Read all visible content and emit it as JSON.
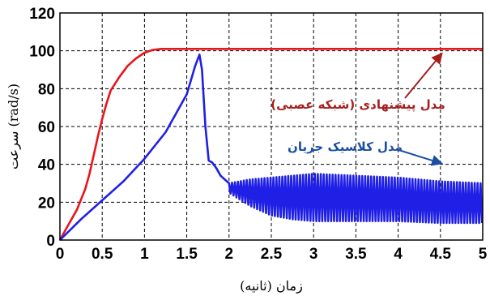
{
  "chart_data": {
    "type": "line",
    "title": "",
    "xlabel": "زمان (ثانیه)",
    "ylabel": "سرعت (rad/s)",
    "xlim": [
      0,
      5
    ],
    "ylim": [
      0,
      120
    ],
    "xticks": [
      "0",
      "0.5",
      "1",
      "1.5",
      "2",
      "2.5",
      "3",
      "3.5",
      "4",
      "4.5",
      "5"
    ],
    "yticks": [
      "0",
      "20",
      "40",
      "60",
      "80",
      "100",
      "120"
    ],
    "grid": true,
    "colors": {
      "proposed": "#e8151b",
      "classic": "#1f1fe6",
      "annotation_red": "#a61e1e",
      "annotation_blue": "#1a4fa0"
    },
    "series": [
      {
        "name": "مدل پیشنهادی (شبکه عصبی)",
        "points": [
          [
            0,
            0
          ],
          [
            0.1,
            8
          ],
          [
            0.2,
            16
          ],
          [
            0.3,
            27
          ],
          [
            0.35,
            35
          ],
          [
            0.4,
            45
          ],
          [
            0.45,
            55
          ],
          [
            0.5,
            64
          ],
          [
            0.55,
            72
          ],
          [
            0.6,
            79
          ],
          [
            0.7,
            86
          ],
          [
            0.8,
            92
          ],
          [
            0.9,
            96
          ],
          [
            1.0,
            99
          ],
          [
            1.1,
            100.5
          ],
          [
            1.2,
            101
          ],
          [
            5,
            101
          ]
        ]
      },
      {
        "name": "مدل کلاسیک جریان",
        "points": [
          [
            0,
            0
          ],
          [
            0.25,
            11
          ],
          [
            0.5,
            21
          ],
          [
            0.75,
            31
          ],
          [
            1.0,
            43
          ],
          [
            1.25,
            57
          ],
          [
            1.5,
            77
          ],
          [
            1.6,
            92
          ],
          [
            1.65,
            98
          ],
          [
            1.68,
            90
          ],
          [
            1.72,
            60
          ],
          [
            1.76,
            42
          ],
          [
            1.8,
            41
          ],
          [
            1.85,
            38
          ],
          [
            1.9,
            34
          ],
          [
            2.0,
            30
          ]
        ],
        "oscillation": [
          [
            2.0,
            25,
            30
          ],
          [
            2.25,
            18,
            32
          ],
          [
            2.5,
            13,
            33
          ],
          [
            2.75,
            11,
            34
          ],
          [
            3.0,
            10,
            35
          ],
          [
            3.5,
            10,
            34
          ],
          [
            4.0,
            10,
            33
          ],
          [
            4.5,
            9,
            31
          ],
          [
            5.0,
            9,
            30
          ]
        ]
      }
    ],
    "annotations": [
      {
        "text": "مدل پیشنهادی (شبکه عصبی)",
        "color": "#a61e1e",
        "arrow_to": [
          4.5,
          100
        ]
      },
      {
        "text": "مدل کلاسیک جریان",
        "color": "#1a4fa0",
        "arrow_to": [
          4.5,
          40
        ]
      }
    ]
  }
}
